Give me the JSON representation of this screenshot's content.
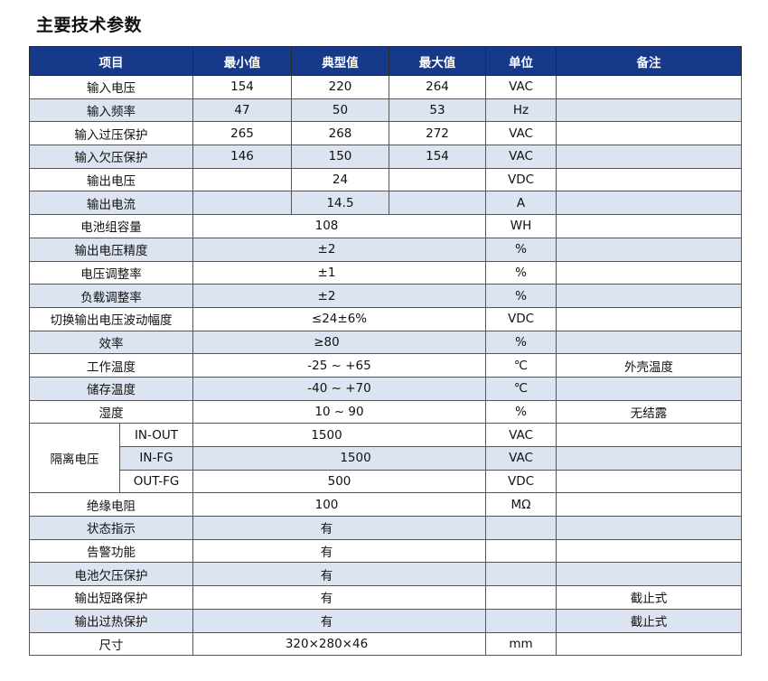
{
  "title": "主要技术参数",
  "headers": {
    "item": "项目",
    "min": "最小值",
    "typ": "典型值",
    "max": "最大值",
    "unit": "单位",
    "note": "备注"
  },
  "rows": {
    "input_voltage": {
      "label": "输入电压",
      "min": "154",
      "typ": "220",
      "max": "264",
      "unit": "VAC",
      "note": ""
    },
    "input_freq": {
      "label": "输入频率",
      "min": "47",
      "typ": "50",
      "max": "53",
      "unit": "Hz",
      "note": ""
    },
    "input_ovp": {
      "label": "输入过压保护",
      "min": "265",
      "typ": "268",
      "max": "272",
      "unit": "VAC",
      "note": ""
    },
    "input_uvp": {
      "label": "输入欠压保护",
      "min": "146",
      "typ": "150",
      "max": "154",
      "unit": "VAC",
      "note": ""
    },
    "output_voltage": {
      "label": "输出电压",
      "typ": "24",
      "unit": "VDC"
    },
    "output_current": {
      "label": "输出电流",
      "typ": "14.5",
      "unit": "A"
    },
    "battery_capacity": {
      "label": "电池组容量",
      "value": "108",
      "unit": "WH"
    },
    "voltage_accuracy": {
      "label": "输出电压精度",
      "value": "±2",
      "unit": "%"
    },
    "voltage_regulation": {
      "label": "电压调整率",
      "value": "±1",
      "unit": "%"
    },
    "load_regulation": {
      "label": "负载调整率",
      "value": "±2",
      "unit": "%"
    },
    "switch_ripple": {
      "label": "切换输出电压波动幅度",
      "value": "≤24±6%",
      "unit": "VDC"
    },
    "efficiency": {
      "label": "效率",
      "value": "≥80",
      "unit": "%"
    },
    "operating_temp": {
      "label": "工作温度",
      "value": "-25 ~ +65",
      "unit": "℃",
      "note": "外壳温度"
    },
    "storage_temp": {
      "label": "储存温度",
      "value": "-40 ~ +70",
      "unit": "℃"
    },
    "humidity": {
      "label": "湿度",
      "value": "10 ~ 90",
      "unit": "%",
      "note": "无结露"
    },
    "isolation": {
      "label": "隔离电压",
      "in_out": {
        "label": "IN-OUT",
        "value": "1500",
        "unit": "VAC"
      },
      "in_fg": {
        "label": "IN-FG",
        "value": "1500",
        "unit": "VAC"
      },
      "out_fg": {
        "label": "OUT-FG",
        "value": "500",
        "unit": "VDC"
      }
    },
    "insulation": {
      "label": "绝缘电阻",
      "value": "100",
      "unit": "MΩ"
    },
    "status": {
      "label": "状态指示",
      "value": "有"
    },
    "alarm": {
      "label": "告警功能",
      "value": "有"
    },
    "battery_uvp": {
      "label": "电池欠压保护",
      "value": "有"
    },
    "short_protect": {
      "label": "输出短路保护",
      "value": "有",
      "note": "截止式"
    },
    "overheat_protect": {
      "label": "输出过热保护",
      "value": "有",
      "note": "截止式"
    },
    "size": {
      "label": "尺寸",
      "value": "320×280×46",
      "unit": "mm"
    }
  }
}
